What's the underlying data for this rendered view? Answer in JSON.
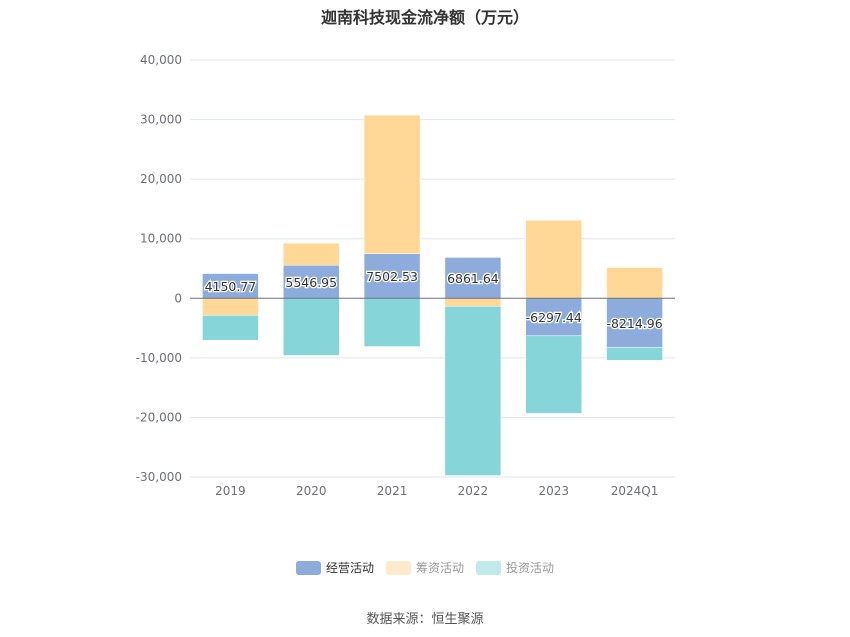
{
  "title": "迦南科技现金流净额（万元）",
  "source": "数据来源：恒生聚源",
  "chart_data": {
    "type": "bar",
    "stacked": true,
    "categories": [
      "2019",
      "2020",
      "2021",
      "2022",
      "2023",
      "2024Q1"
    ],
    "ylim": [
      -30000,
      40000
    ],
    "yticks": [
      -30000,
      -20000,
      -10000,
      0,
      10000,
      20000,
      30000,
      40000
    ],
    "ytick_labels": [
      "-30,000",
      "-20,000",
      "-10,000",
      "0",
      "10,000",
      "20,000",
      "30,000",
      "40,000"
    ],
    "grid": true,
    "legend_position": "bottom",
    "series": [
      {
        "name": "经营活动",
        "color": "#8eacdb",
        "values": [
          4150.77,
          5546.95,
          7502.53,
          6861.64,
          -6297.44,
          -8214.96
        ],
        "labels": [
          "4150.77",
          "5546.95",
          "7502.53",
          "6861.64",
          "-6297.44",
          "-8214.96"
        ]
      },
      {
        "name": "筹资活动",
        "color": "#ffd797",
        "values": [
          -2850,
          3700,
          23250,
          -1350,
          13100,
          5160
        ]
      },
      {
        "name": "投资活动",
        "color": "#86d5d8",
        "values": [
          -4200,
          -9600,
          -8100,
          -28400,
          -13030,
          -2200
        ]
      }
    ]
  },
  "legend": [
    {
      "label": "经营活动",
      "swatch": "#8eacdb",
      "text_color": "#333333"
    },
    {
      "label": "筹资活动",
      "swatch": "#ffebcb",
      "text_color": "#999999"
    },
    {
      "label": "投资活动",
      "swatch": "#c3eaeb",
      "text_color": "#999999"
    }
  ]
}
